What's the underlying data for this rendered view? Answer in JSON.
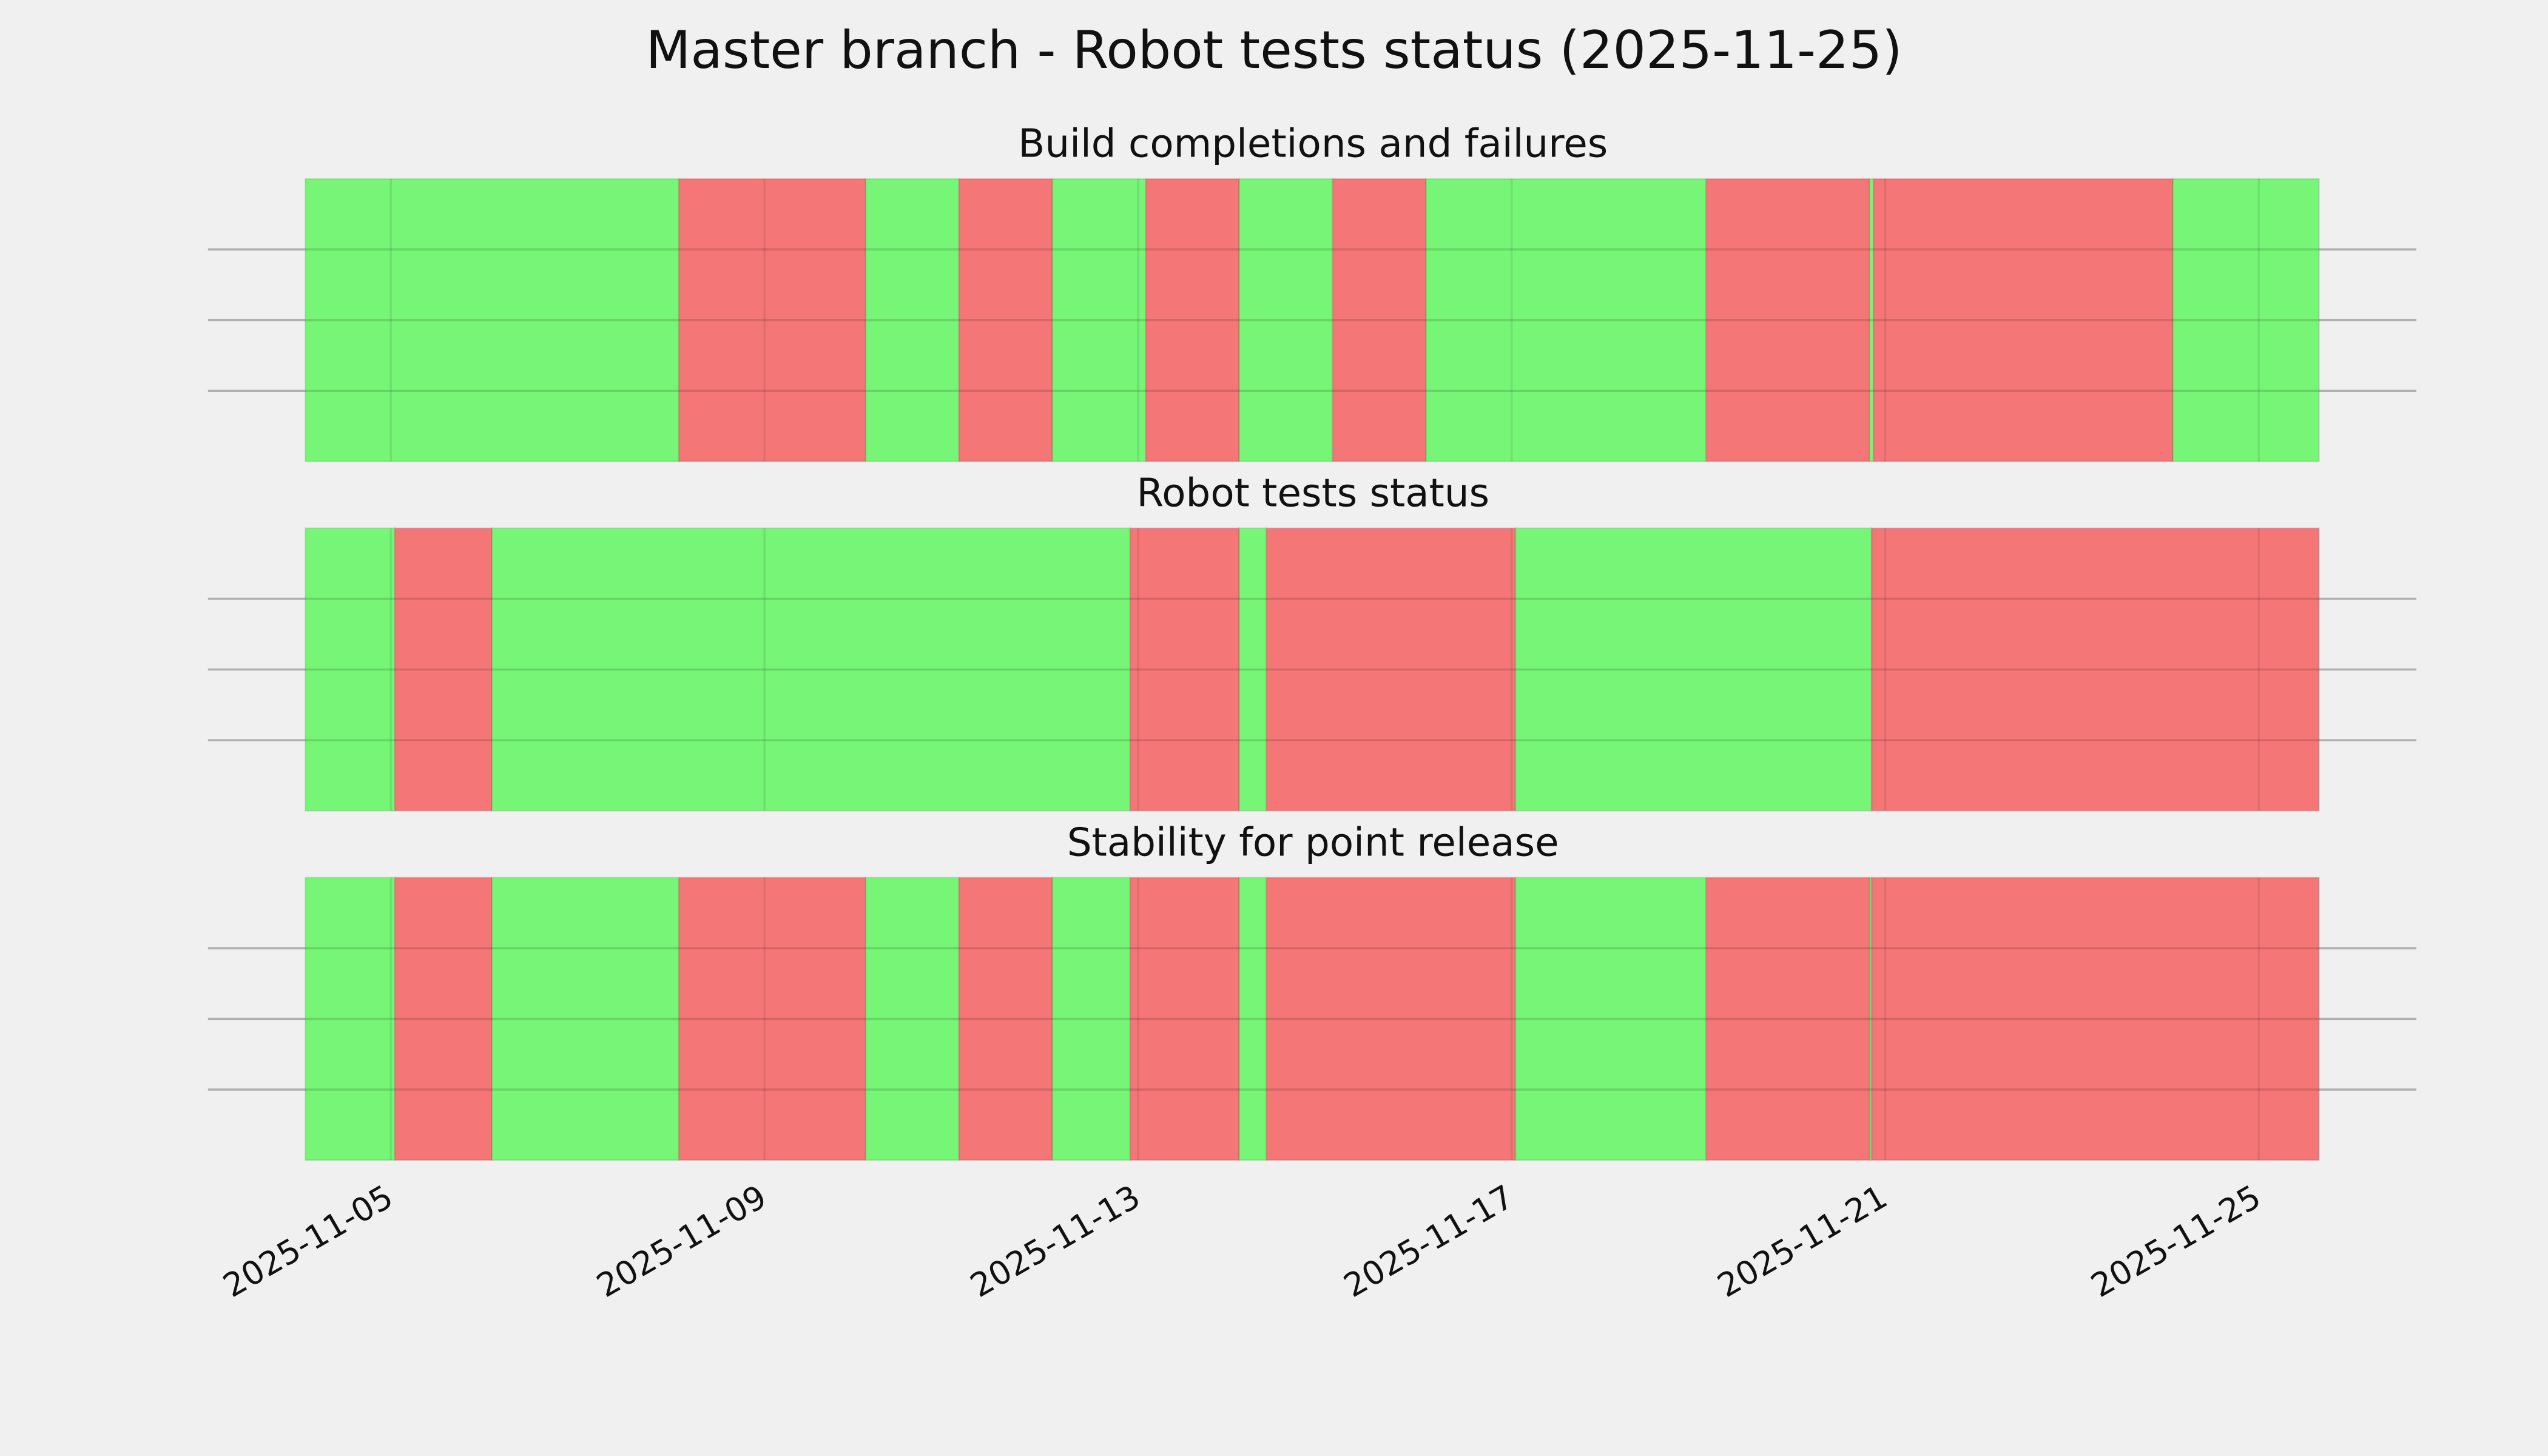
{
  "title": "Master branch - Robot tests status (2025-11-25)",
  "chart_data": [
    {
      "type": "timeline",
      "title": "Build completions and failures",
      "xlim": [
        "2025-11-03T01:00",
        "2025-11-26T16:30"
      ],
      "xticks": [
        "2025-11-05",
        "2025-11-09",
        "2025-11-13",
        "2025-11-17",
        "2025-11-21",
        "2025-11-25"
      ],
      "xtick_labels": false,
      "ylim": [
        0,
        1
      ],
      "yticks": [
        0.25,
        0.5,
        0.75
      ],
      "grid": true,
      "spans": [
        {
          "start": "2025-11-04T02:00",
          "end": "2025-11-08T02:00",
          "color": "#76f576"
        },
        {
          "start": "2025-11-08T02:00",
          "end": "2025-11-10T02:00",
          "color": "#f57676"
        },
        {
          "start": "2025-11-10T02:00",
          "end": "2025-11-11T02:00",
          "color": "#76f576"
        },
        {
          "start": "2025-11-11T02:00",
          "end": "2025-11-12T02:00",
          "color": "#f57676"
        },
        {
          "start": "2025-11-12T02:00",
          "end": "2025-11-13T02:00",
          "color": "#76f576"
        },
        {
          "start": "2025-11-13T02:00",
          "end": "2025-11-14T02:00",
          "color": "#f57676"
        },
        {
          "start": "2025-11-14T02:00",
          "end": "2025-11-15T02:00",
          "color": "#76f576"
        },
        {
          "start": "2025-11-15T02:00",
          "end": "2025-11-16T02:00",
          "color": "#f57676"
        },
        {
          "start": "2025-11-16T02:00",
          "end": "2025-11-19T02:00",
          "color": "#76f576"
        },
        {
          "start": "2025-11-19T02:00",
          "end": "2025-11-20T20:00",
          "color": "#f57676"
        },
        {
          "start": "2025-11-20T20:00",
          "end": "2025-11-20T21:00",
          "color": "#76f576"
        },
        {
          "start": "2025-11-20T21:00",
          "end": "2025-11-24T02:00",
          "color": "#f57676"
        },
        {
          "start": "2025-11-24T02:00",
          "end": "2025-11-25T15:30",
          "color": "#76f576"
        }
      ]
    },
    {
      "type": "timeline",
      "title": "Robot tests status",
      "xlim": [
        "2025-11-03T01:00",
        "2025-11-26T16:30"
      ],
      "xticks": [
        "2025-11-05",
        "2025-11-09",
        "2025-11-13",
        "2025-11-17",
        "2025-11-21",
        "2025-11-25"
      ],
      "xtick_labels": false,
      "ylim": [
        0,
        1
      ],
      "yticks": [
        0.25,
        0.5,
        0.75
      ],
      "grid": true,
      "spans": [
        {
          "start": "2025-11-04T02:00",
          "end": "2025-11-05T01:00",
          "color": "#76f576"
        },
        {
          "start": "2025-11-05T01:00",
          "end": "2025-11-06T02:00",
          "color": "#f57676"
        },
        {
          "start": "2025-11-06T02:00",
          "end": "2025-11-12T22:00",
          "color": "#76f576"
        },
        {
          "start": "2025-11-12T22:00",
          "end": "2025-11-14T02:00",
          "color": "#f57676"
        },
        {
          "start": "2025-11-14T02:00",
          "end": "2025-11-14T09:00",
          "color": "#76f576"
        },
        {
          "start": "2025-11-14T09:00",
          "end": "2025-11-17T01:00",
          "color": "#f57676"
        },
        {
          "start": "2025-11-17T01:00",
          "end": "2025-11-20T20:30",
          "color": "#76f576"
        },
        {
          "start": "2025-11-20T20:30",
          "end": "2025-11-25T15:30",
          "color": "#f57676"
        }
      ]
    },
    {
      "type": "timeline",
      "title": "Stability for point release",
      "xlim": [
        "2025-11-03T01:00",
        "2025-11-26T16:30"
      ],
      "xticks": [
        "2025-11-05",
        "2025-11-09",
        "2025-11-13",
        "2025-11-17",
        "2025-11-21",
        "2025-11-25"
      ],
      "xtick_labels": true,
      "ylim": [
        0,
        1
      ],
      "yticks": [
        0.25,
        0.5,
        0.75
      ],
      "grid": true,
      "spans": [
        {
          "start": "2025-11-04T02:00",
          "end": "2025-11-05T01:00",
          "color": "#76f576"
        },
        {
          "start": "2025-11-05T01:00",
          "end": "2025-11-06T02:00",
          "color": "#f57676"
        },
        {
          "start": "2025-11-06T02:00",
          "end": "2025-11-08T02:00",
          "color": "#76f576"
        },
        {
          "start": "2025-11-08T02:00",
          "end": "2025-11-10T02:00",
          "color": "#f57676"
        },
        {
          "start": "2025-11-10T02:00",
          "end": "2025-11-11T02:00",
          "color": "#76f576"
        },
        {
          "start": "2025-11-11T02:00",
          "end": "2025-11-12T02:00",
          "color": "#f57676"
        },
        {
          "start": "2025-11-12T02:00",
          "end": "2025-11-12T22:00",
          "color": "#76f576"
        },
        {
          "start": "2025-11-12T22:00",
          "end": "2025-11-14T02:00",
          "color": "#f57676"
        },
        {
          "start": "2025-11-14T02:00",
          "end": "2025-11-14T09:00",
          "color": "#76f576"
        },
        {
          "start": "2025-11-14T09:00",
          "end": "2025-11-17T01:00",
          "color": "#f57676"
        },
        {
          "start": "2025-11-17T01:00",
          "end": "2025-11-19T02:00",
          "color": "#76f576"
        },
        {
          "start": "2025-11-19T02:00",
          "end": "2025-11-20T20:00",
          "color": "#f57676"
        },
        {
          "start": "2025-11-20T20:00",
          "end": "2025-11-20T20:30",
          "color": "#76f576"
        },
        {
          "start": "2025-11-20T20:30",
          "end": "2025-11-25T15:30",
          "color": "#f57676"
        }
      ]
    }
  ]
}
